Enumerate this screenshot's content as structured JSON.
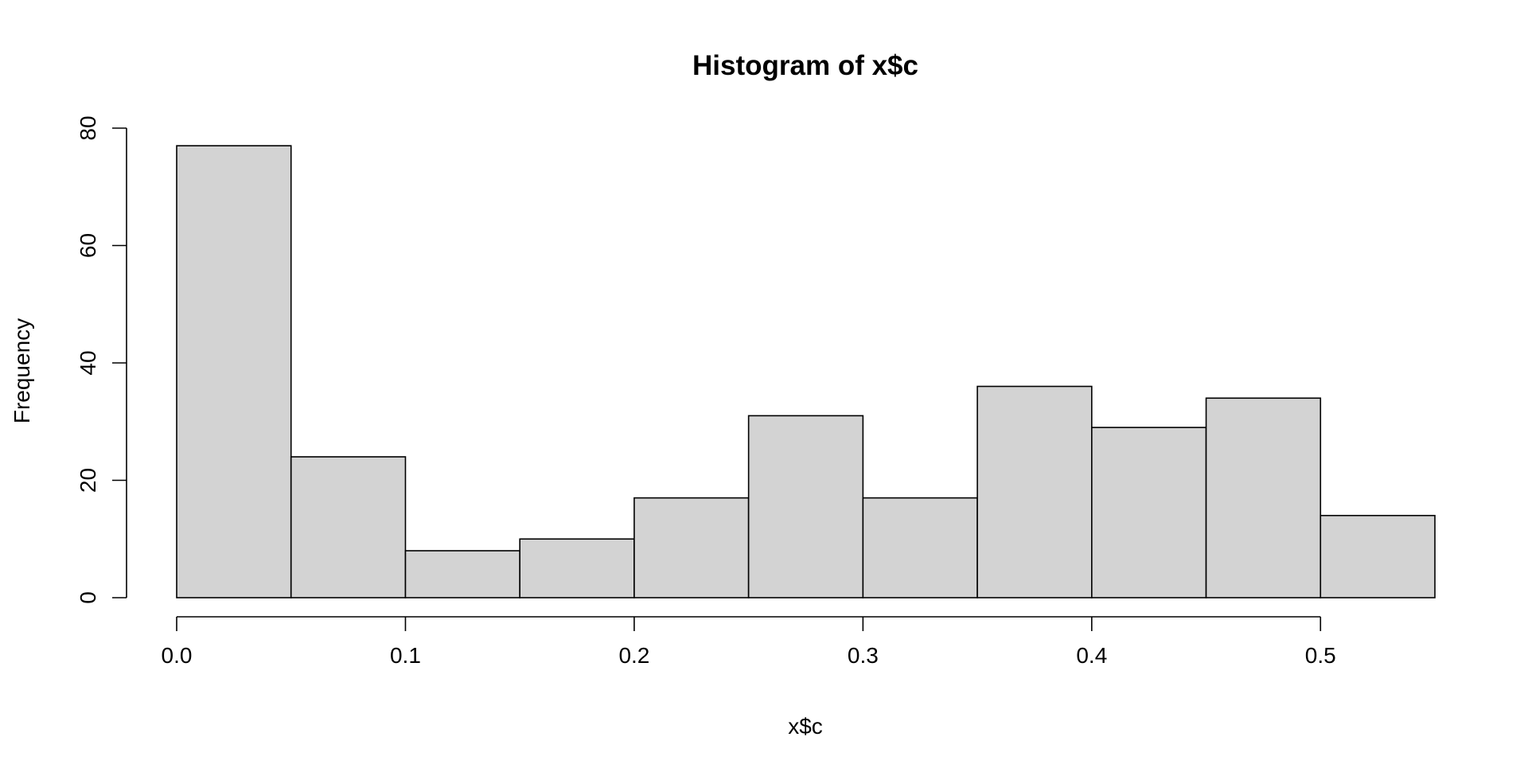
{
  "chart_data": {
    "type": "bar",
    "title": "Histogram of x$c",
    "xlabel": "x$c",
    "ylabel": "Frequency",
    "bins": [
      {
        "start": 0.0,
        "end": 0.05,
        "count": 77
      },
      {
        "start": 0.05,
        "end": 0.1,
        "count": 24
      },
      {
        "start": 0.1,
        "end": 0.15,
        "count": 8
      },
      {
        "start": 0.15,
        "end": 0.2,
        "count": 10
      },
      {
        "start": 0.2,
        "end": 0.25,
        "count": 17
      },
      {
        "start": 0.25,
        "end": 0.3,
        "count": 31
      },
      {
        "start": 0.3,
        "end": 0.35,
        "count": 17
      },
      {
        "start": 0.35,
        "end": 0.4,
        "count": 36
      },
      {
        "start": 0.4,
        "end": 0.45,
        "count": 29
      },
      {
        "start": 0.45,
        "end": 0.5,
        "count": 34
      },
      {
        "start": 0.5,
        "end": 0.55,
        "count": 14
      }
    ],
    "xlim": [
      0.0,
      0.55
    ],
    "ylim": [
      0,
      80
    ],
    "x_ticks": [
      0.0,
      0.1,
      0.2,
      0.3,
      0.4,
      0.5
    ],
    "x_tick_labels": [
      "0.0",
      "0.1",
      "0.2",
      "0.3",
      "0.4",
      "0.5"
    ],
    "y_ticks": [
      0,
      20,
      40,
      60,
      80
    ],
    "y_tick_labels": [
      "0",
      "20",
      "40",
      "60",
      "80"
    ],
    "grid": false,
    "bar_fill": "#d3d3d3",
    "bar_stroke": "#000000"
  }
}
